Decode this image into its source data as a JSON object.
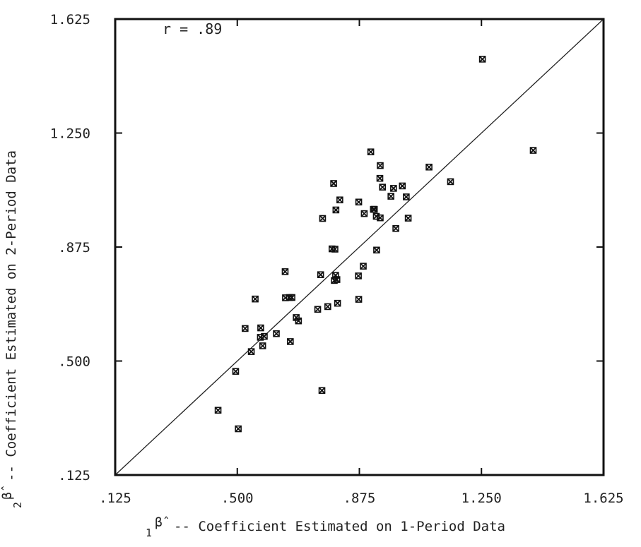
{
  "chart_data": {
    "type": "scatter",
    "title": "",
    "xlabel_prefix": "1",
    "xlabel_symbol": "β̂",
    "xlabel": "-- Coefficient Estimated on 1-Period Data",
    "ylabel_prefix": "2",
    "ylabel_symbol": "β̂",
    "ylabel": "-- Coefficient Estimated on 2-Period Data",
    "xlim": [
      0.125,
      1.625
    ],
    "ylim": [
      0.125,
      1.625
    ],
    "x_ticks": [
      0.125,
      0.5,
      0.875,
      1.25,
      1.625
    ],
    "y_ticks": [
      0.125,
      0.5,
      0.875,
      1.25,
      1.625
    ],
    "x_tick_labels": [
      ".125",
      ".500",
      ".875",
      "1.250",
      "1.625"
    ],
    "y_tick_labels": [
      ".125",
      ".500",
      ".875",
      "1.250",
      "1.625"
    ],
    "annotation": "r = .89",
    "reference_line": "y = x",
    "grid": false,
    "marker": "x-square",
    "points": [
      {
        "x": 0.441,
        "y": 0.338
      },
      {
        "x": 0.495,
        "y": 0.466
      },
      {
        "x": 0.503,
        "y": 0.277
      },
      {
        "x": 0.524,
        "y": 0.607
      },
      {
        "x": 0.543,
        "y": 0.531
      },
      {
        "x": 0.555,
        "y": 0.704
      },
      {
        "x": 0.572,
        "y": 0.609
      },
      {
        "x": 0.571,
        "y": 0.578
      },
      {
        "x": 0.578,
        "y": 0.55
      },
      {
        "x": 0.583,
        "y": 0.581
      },
      {
        "x": 0.62,
        "y": 0.59
      },
      {
        "x": 0.647,
        "y": 0.794
      },
      {
        "x": 0.648,
        "y": 0.708
      },
      {
        "x": 0.66,
        "y": 0.709
      },
      {
        "x": 0.663,
        "y": 0.564
      },
      {
        "x": 0.668,
        "y": 0.709
      },
      {
        "x": 0.681,
        "y": 0.643
      },
      {
        "x": 0.688,
        "y": 0.632
      },
      {
        "x": 0.747,
        "y": 0.67
      },
      {
        "x": 0.756,
        "y": 0.784
      },
      {
        "x": 0.76,
        "y": 0.403
      },
      {
        "x": 0.762,
        "y": 0.969
      },
      {
        "x": 0.778,
        "y": 0.679
      },
      {
        "x": 0.791,
        "y": 0.869
      },
      {
        "x": 0.796,
        "y": 1.084
      },
      {
        "x": 0.798,
        "y": 0.765
      },
      {
        "x": 0.8,
        "y": 0.868
      },
      {
        "x": 0.802,
        "y": 0.782
      },
      {
        "x": 0.803,
        "y": 0.997
      },
      {
        "x": 0.806,
        "y": 0.768
      },
      {
        "x": 0.808,
        "y": 0.69
      },
      {
        "x": 0.815,
        "y": 1.03
      },
      {
        "x": 0.872,
        "y": 0.78
      },
      {
        "x": 0.873,
        "y": 1.023
      },
      {
        "x": 0.873,
        "y": 0.703
      },
      {
        "x": 0.887,
        "y": 0.812
      },
      {
        "x": 0.89,
        "y": 0.985
      },
      {
        "x": 0.91,
        "y": 1.188
      },
      {
        "x": 0.918,
        "y": 0.999
      },
      {
        "x": 0.921,
        "y": 0.999
      },
      {
        "x": 0.927,
        "y": 0.976
      },
      {
        "x": 0.928,
        "y": 0.865
      },
      {
        "x": 0.938,
        "y": 1.101
      },
      {
        "x": 0.939,
        "y": 1.143
      },
      {
        "x": 0.939,
        "y": 0.971
      },
      {
        "x": 0.946,
        "y": 1.072
      },
      {
        "x": 0.972,
        "y": 1.042
      },
      {
        "x": 0.98,
        "y": 1.068
      },
      {
        "x": 0.987,
        "y": 0.936
      },
      {
        "x": 1.007,
        "y": 1.076
      },
      {
        "x": 1.019,
        "y": 1.04
      },
      {
        "x": 1.025,
        "y": 0.97
      },
      {
        "x": 1.089,
        "y": 1.138
      },
      {
        "x": 1.155,
        "y": 1.09
      },
      {
        "x": 1.253,
        "y": 1.493
      },
      {
        "x": 1.409,
        "y": 1.193
      }
    ]
  }
}
